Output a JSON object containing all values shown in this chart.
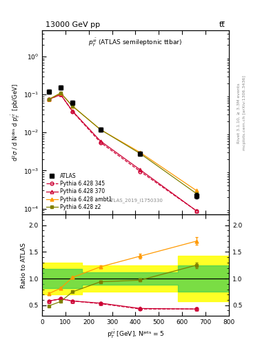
{
  "title_top": "13000 GeV pp",
  "title_right": "tt̅",
  "plot_title": "p$_T^{t\\bar{t}}$ (ATLAS semileptonic ttbar)",
  "watermark": "ATLAS_2019_I1750330",
  "right_label1": "Rivet 3.1.10, ≥ 3.3M events",
  "right_label2": "mcplots.cern.ch [arXiv:1306.3436]",
  "xlabel": "p$^{t\\bar{t}}_{T}$ [GeV], N$^{\\rm jets}$ = 5",
  "ylabel_main": "d$^2\\sigma$ / d N$^{\\rm obs}$ d p$^{t\\bar{t}}_{T}$  [pb/GeV]",
  "ylabel_ratio": "Ratio to ATLAS",
  "x_atlas": [
    30,
    80,
    130,
    250,
    420,
    660
  ],
  "y_atlas": [
    0.118,
    0.155,
    0.062,
    0.012,
    0.0028,
    0.00022
  ],
  "y_atlas_err": [
    0.015,
    0.018,
    0.008,
    0.0015,
    0.0004,
    4e-05
  ],
  "x_mc": [
    30,
    80,
    130,
    250,
    420,
    660
  ],
  "y_pythia345": [
    0.075,
    0.1,
    0.036,
    0.0055,
    0.00095,
    8.8e-05
  ],
  "y_pythia370": [
    0.075,
    0.1,
    0.037,
    0.006,
    0.00105,
    8.8e-05
  ],
  "y_pythia_ambt1": [
    0.075,
    0.11,
    0.05,
    0.012,
    0.003,
    0.0003
  ],
  "y_pythia_z2": [
    0.075,
    0.11,
    0.05,
    0.012,
    0.0028,
    0.00025
  ],
  "ratio_pythia345": [
    0.58,
    0.62,
    0.58,
    0.53,
    0.43,
    0.43
  ],
  "ratio_pythia370": [
    0.58,
    0.62,
    0.58,
    0.54,
    0.44,
    0.43
  ],
  "ratio_pythia_ambt1": [
    0.72,
    0.82,
    1.02,
    1.22,
    1.42,
    1.7
  ],
  "ratio_pythia_z2": [
    0.49,
    0.57,
    0.75,
    0.94,
    0.97,
    1.25
  ],
  "err_pythia345": [
    0.01,
    0.01,
    0.01,
    0.01,
    0.015,
    0.025
  ],
  "err_pythia370": [
    0.01,
    0.01,
    0.01,
    0.01,
    0.015,
    0.025
  ],
  "err_pythia_ambt1": [
    0.02,
    0.02,
    0.02,
    0.03,
    0.04,
    0.07
  ],
  "err_pythia_z2": [
    0.01,
    0.01,
    0.01,
    0.02,
    0.025,
    0.05
  ],
  "band_green_edges": [
    0,
    170,
    580,
    800
  ],
  "band_green_lo": [
    0.82,
    0.88,
    0.75,
    0.75
  ],
  "band_green_hi": [
    1.18,
    1.12,
    1.25,
    1.25
  ],
  "band_yellow_edges": [
    0,
    170,
    580,
    800
  ],
  "band_yellow_lo": [
    0.7,
    0.76,
    0.58,
    0.58
  ],
  "band_yellow_hi": [
    1.3,
    1.24,
    1.42,
    1.42
  ],
  "color_atlas": "#000000",
  "color_pythia345": "#cc0033",
  "color_pythia370": "#cc0033",
  "color_pythia_ambt1": "#ff9900",
  "color_pythia_z2": "#808000",
  "xlim": [
    0,
    800
  ],
  "ylim_main": [
    7e-05,
    5.0
  ],
  "ylim_ratio": [
    0.3,
    2.2
  ],
  "ratio_yticks": [
    0.5,
    1.0,
    1.5,
    2.0
  ]
}
